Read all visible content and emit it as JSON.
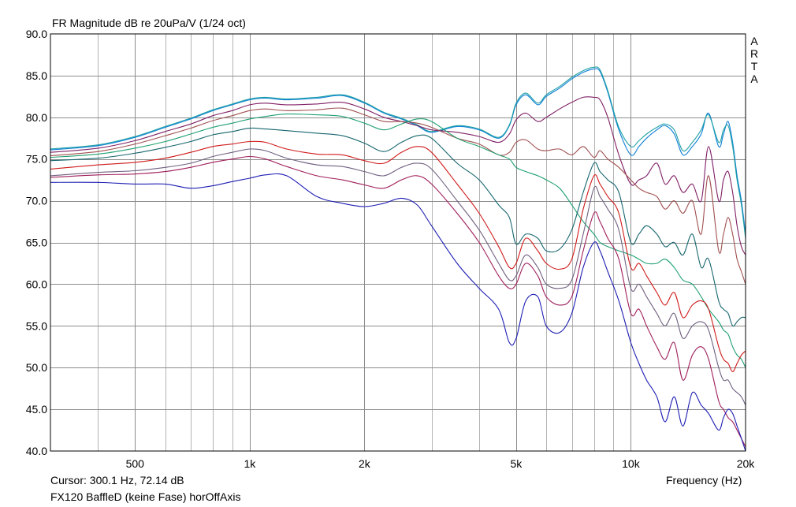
{
  "header": {
    "title": "FR Magnitude dB re 20uPa/V (1/24 oct)"
  },
  "brand": {
    "letters": [
      "A",
      "R",
      "T",
      "A"
    ]
  },
  "footer": {
    "cursor_readout": "Cursor: 300.1 Hz, 72.14 dB",
    "x_axis_label": "Frequency (Hz)",
    "caption": "FX120 BaffleD (keine Fase) horOffAxis"
  },
  "chart_data": {
    "type": "line",
    "title": "FR Magnitude dB re 20uPa/V (1/24 oct)",
    "xlabel": "Frequency (Hz)",
    "ylabel": "",
    "xscale": "log",
    "xlim": [
      300,
      20000
    ],
    "ylim": [
      40,
      90
    ],
    "grid": true,
    "x_ticks": [
      {
        "value": 500,
        "label": "500"
      },
      {
        "value": 1000,
        "label": "1k"
      },
      {
        "value": 2000,
        "label": "2k"
      },
      {
        "value": 5000,
        "label": "5k"
      },
      {
        "value": 10000,
        "label": "10k"
      },
      {
        "value": 20000,
        "label": "20k"
      }
    ],
    "y_ticks": [
      {
        "value": 40,
        "label": "40.0"
      },
      {
        "value": 45,
        "label": "45.0"
      },
      {
        "value": 50,
        "label": "50.0"
      },
      {
        "value": 55,
        "label": "55.0"
      },
      {
        "value": 60,
        "label": "60.0"
      },
      {
        "value": 65,
        "label": "65.0"
      },
      {
        "value": 70,
        "label": "70.0"
      },
      {
        "value": 75,
        "label": "75.0"
      },
      {
        "value": 80,
        "label": "80.0"
      },
      {
        "value": 85,
        "label": "85.0"
      },
      {
        "value": 90,
        "label": "90.0"
      }
    ],
    "x": [
      300,
      400,
      500,
      600,
      700,
      800,
      900,
      1000,
      1100,
      1250,
      1500,
      1750,
      2000,
      2250,
      2500,
      2750,
      3000,
      3500,
      4000,
      4500,
      4800,
      5000,
      5300,
      5700,
      6000,
      6500,
      7000,
      7500,
      8000,
      8300,
      8700,
      9300,
      10000,
      10500,
      11000,
      11700,
      12300,
      13000,
      13700,
      14500,
      15300,
      16000,
      17000,
      17500,
      18000,
      18500,
      19000,
      19500,
      20000
    ],
    "series": [
      {
        "color": "#0d7fd6",
        "values": [
          76.1,
          76.6,
          77.6,
          78.8,
          79.8,
          80.8,
          81.5,
          82.1,
          82.3,
          82.1,
          82.3,
          82.6,
          81.7,
          80.5,
          79.8,
          79.0,
          78.2,
          78.9,
          78.5,
          77.5,
          79.0,
          81.5,
          82.7,
          81.5,
          82.5,
          83.5,
          84.6,
          85.4,
          85.8,
          85.5,
          83.0,
          78.5,
          75.5,
          76.5,
          77.5,
          78.5,
          79.0,
          78.0,
          75.5,
          76.5,
          78.0,
          80.5,
          76.5,
          78.0,
          79.5,
          77.0,
          73.0,
          70.0,
          66.0
        ]
      },
      {
        "color": "#1fa0a6",
        "values": [
          76.2,
          76.7,
          77.7,
          78.9,
          79.9,
          80.9,
          81.6,
          82.2,
          82.4,
          82.2,
          82.4,
          82.7,
          81.8,
          80.6,
          79.9,
          79.1,
          78.3,
          79.0,
          78.6,
          77.6,
          79.1,
          81.7,
          82.9,
          81.7,
          82.7,
          83.7,
          84.8,
          85.6,
          86.0,
          85.7,
          83.2,
          78.8,
          76.5,
          77.2,
          78.0,
          78.8,
          79.2,
          78.5,
          76.0,
          77.0,
          78.5,
          80.3,
          77.0,
          78.5,
          79.0,
          76.5,
          72.5,
          69.5,
          65.5
        ]
      },
      {
        "color": "#802066",
        "values": [
          75.8,
          76.3,
          77.2,
          78.3,
          79.2,
          80.2,
          80.8,
          81.5,
          81.7,
          81.5,
          81.6,
          81.8,
          81.0,
          80.0,
          79.5,
          79.0,
          78.5,
          78.2,
          77.7,
          77.0,
          78.0,
          79.7,
          80.5,
          79.5,
          80.0,
          81.0,
          81.8,
          82.4,
          82.4,
          82.1,
          80.0,
          75.5,
          72.0,
          72.5,
          73.0,
          74.5,
          72.0,
          73.0,
          71.0,
          72.0,
          70.0,
          76.5,
          70.0,
          72.5,
          73.5,
          71.0,
          67.0,
          64.5,
          63.5
        ]
      },
      {
        "color": "#a05050",
        "values": [
          75.4,
          75.9,
          76.8,
          77.8,
          78.7,
          79.6,
          80.2,
          80.8,
          81.0,
          80.8,
          80.9,
          81.1,
          80.3,
          79.5,
          79.5,
          79.3,
          78.8,
          77.5,
          76.8,
          75.5,
          75.8,
          77.0,
          77.3,
          76.2,
          76.0,
          76.2,
          75.5,
          76.5,
          75.2,
          76.0,
          75.0,
          74.0,
          72.5,
          71.5,
          71.0,
          70.5,
          69.0,
          70.0,
          68.5,
          70.0,
          66.0,
          73.0,
          64.0,
          66.0,
          68.0,
          66.0,
          63.0,
          61.5,
          60.0
        ]
      },
      {
        "color": "#1ea070",
        "values": [
          75.2,
          75.6,
          76.3,
          77.1,
          78.0,
          78.8,
          79.3,
          79.8,
          80.1,
          80.4,
          80.3,
          80.1,
          79.3,
          78.5,
          79.2,
          79.8,
          79.5,
          77.5,
          76.5,
          75.5,
          75.0,
          74.0,
          73.5,
          73.0,
          72.5,
          71.5,
          69.5,
          67.5,
          66.0,
          65.0,
          64.5,
          64.0,
          63.5,
          63.0,
          62.5,
          62.5,
          63.0,
          62.0,
          60.5,
          60.0,
          58.5,
          57.0,
          55.5,
          54.5,
          54.0,
          52.5,
          51.5,
          51.0,
          50.0
        ]
      },
      {
        "color": "#16666e",
        "values": [
          74.8,
          75.1,
          75.7,
          76.4,
          77.1,
          77.9,
          78.3,
          78.7,
          78.6,
          78.4,
          78.1,
          77.8,
          76.9,
          75.9,
          77.0,
          77.8,
          77.5,
          74.5,
          72.5,
          69.5,
          68.0,
          64.8,
          66.0,
          65.5,
          64.0,
          64.2,
          66.5,
          71.0,
          74.5,
          73.5,
          72.5,
          71.0,
          65.0,
          66.0,
          67.0,
          66.0,
          64.5,
          65.0,
          63.5,
          66.0,
          62.0,
          63.0,
          58.0,
          57.0,
          56.5,
          55.0,
          55.5,
          56.0,
          56.0
        ]
      },
      {
        "color": "#d01a1a",
        "values": [
          73.8,
          74.3,
          74.6,
          75.1,
          75.8,
          76.5,
          76.8,
          77.1,
          77.0,
          76.2,
          75.6,
          75.5,
          74.8,
          74.5,
          75.8,
          76.5,
          75.8,
          72.0,
          68.5,
          64.5,
          62.0,
          62.5,
          65.5,
          64.0,
          62.5,
          61.8,
          63.0,
          69.0,
          73.0,
          72.0,
          70.5,
          68.5,
          62.0,
          62.5,
          61.0,
          59.0,
          57.5,
          59.0,
          56.0,
          57.5,
          58.0,
          57.0,
          52.5,
          51.0,
          50.5,
          49.5,
          50.5,
          51.5,
          52.0
        ]
      },
      {
        "color": "#706080",
        "values": [
          73.0,
          73.4,
          73.6,
          74.0,
          74.5,
          75.3,
          75.8,
          76.2,
          76.0,
          75.1,
          74.3,
          74.1,
          73.5,
          73.0,
          74.0,
          74.5,
          73.8,
          70.0,
          66.5,
          62.5,
          60.5,
          61.0,
          63.5,
          62.0,
          60.0,
          59.5,
          60.5,
          66.0,
          71.5,
          70.5,
          69.0,
          66.5,
          59.5,
          60.0,
          58.5,
          56.5,
          55.0,
          56.5,
          53.5,
          55.0,
          55.5,
          54.5,
          50.0,
          48.5,
          48.5,
          47.5,
          47.0,
          46.5,
          45.5
        ]
      },
      {
        "color": "#a01e5a",
        "values": [
          72.8,
          73.1,
          73.2,
          73.5,
          74.0,
          74.6,
          75.0,
          75.3,
          75.0,
          74.1,
          73.0,
          72.5,
          71.9,
          71.5,
          72.5,
          73.0,
          72.0,
          68.5,
          65.0,
          61.0,
          59.5,
          60.0,
          62.5,
          61.0,
          58.5,
          57.5,
          58.5,
          64.0,
          68.5,
          67.5,
          65.5,
          63.0,
          56.5,
          57.0,
          55.0,
          52.5,
          51.0,
          53.0,
          48.5,
          51.5,
          52.5,
          51.0,
          46.0,
          45.0,
          44.0,
          43.5,
          42.5,
          41.5,
          40.5
        ]
      },
      {
        "color": "#1e1eb4",
        "values": [
          72.2,
          72.2,
          72.0,
          72.0,
          71.5,
          71.8,
          72.3,
          72.7,
          73.1,
          73.0,
          70.5,
          69.7,
          69.3,
          69.7,
          70.3,
          69.5,
          67.0,
          62.5,
          59.5,
          57.0,
          53.0,
          53.5,
          58.0,
          58.5,
          55.0,
          54.2,
          56.5,
          62.0,
          65.0,
          64.0,
          61.5,
          58.0,
          53.0,
          50.5,
          48.5,
          46.5,
          43.5,
          46.5,
          43.0,
          47.0,
          45.5,
          44.5,
          42.5,
          44.0,
          45.0,
          44.5,
          43.0,
          41.5,
          40.0
        ]
      }
    ]
  }
}
